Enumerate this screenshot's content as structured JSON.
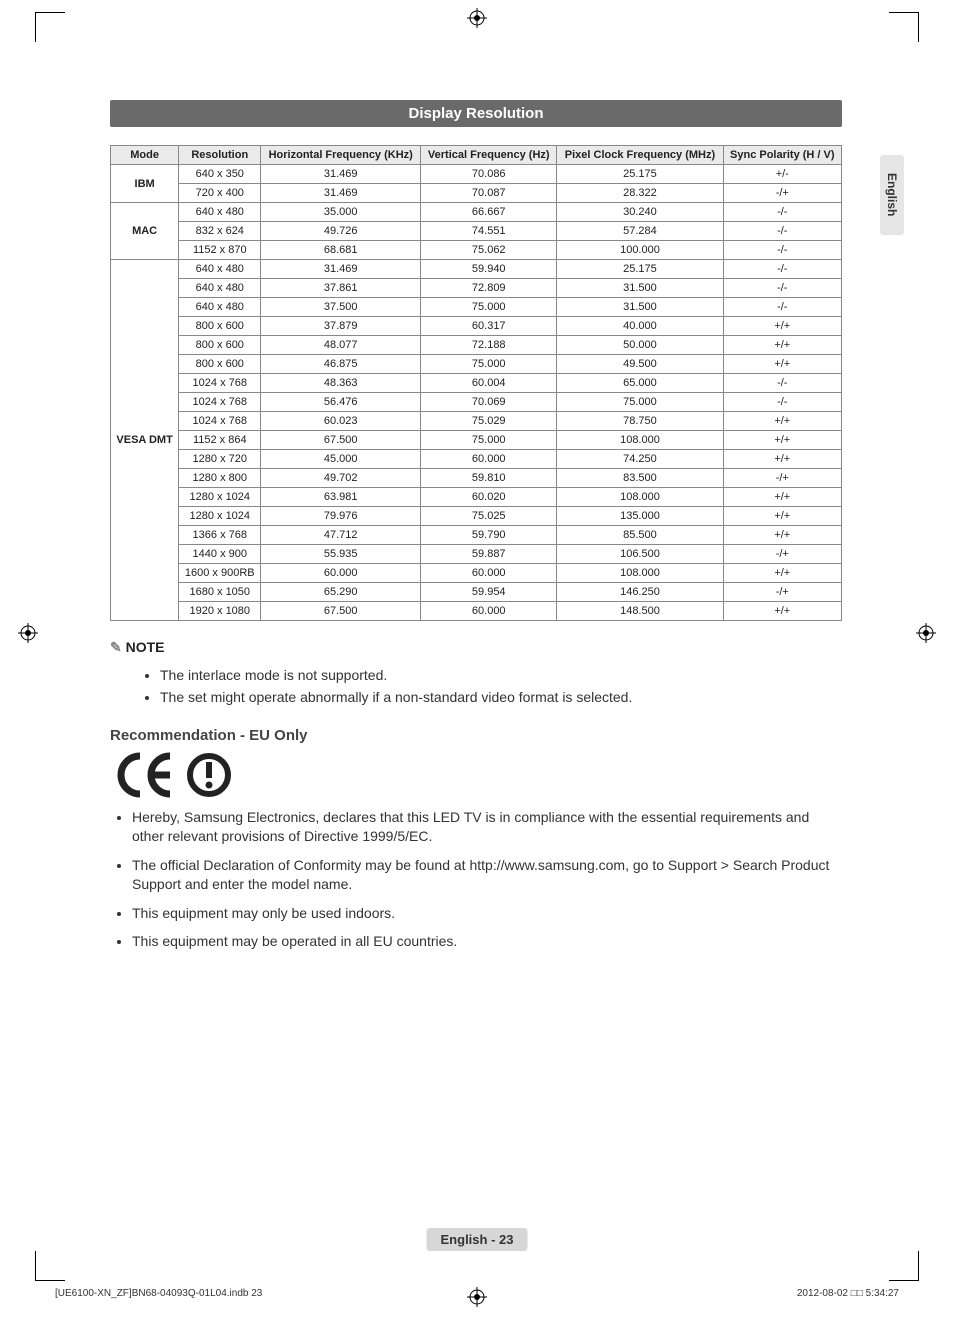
{
  "title": "Display Resolution",
  "side_tab": "English",
  "table": {
    "headers": [
      "Mode",
      "Resolution",
      "Horizontal Frequency (KHz)",
      "Vertical Frequency (Hz)",
      "Pixel Clock Frequency (MHz)",
      "Sync Polarity (H / V)"
    ],
    "groups": [
      {
        "mode": "IBM",
        "rows": [
          [
            "640 x 350",
            "31.469",
            "70.086",
            "25.175",
            "+/-"
          ],
          [
            "720 x 400",
            "31.469",
            "70.087",
            "28.322",
            "-/+"
          ]
        ]
      },
      {
        "mode": "MAC",
        "rows": [
          [
            "640 x 480",
            "35.000",
            "66.667",
            "30.240",
            "-/-"
          ],
          [
            "832 x 624",
            "49.726",
            "74.551",
            "57.284",
            "-/-"
          ],
          [
            "1152 x 870",
            "68.681",
            "75.062",
            "100.000",
            "-/-"
          ]
        ]
      },
      {
        "mode": "VESA DMT",
        "rows": [
          [
            "640 x 480",
            "31.469",
            "59.940",
            "25.175",
            "-/-"
          ],
          [
            "640 x 480",
            "37.861",
            "72.809",
            "31.500",
            "-/-"
          ],
          [
            "640 x 480",
            "37.500",
            "75.000",
            "31.500",
            "-/-"
          ],
          [
            "800 x 600",
            "37.879",
            "60.317",
            "40.000",
            "+/+"
          ],
          [
            "800 x 600",
            "48.077",
            "72.188",
            "50.000",
            "+/+"
          ],
          [
            "800 x 600",
            "46.875",
            "75.000",
            "49.500",
            "+/+"
          ],
          [
            "1024 x 768",
            "48.363",
            "60.004",
            "65.000",
            "-/-"
          ],
          [
            "1024 x 768",
            "56.476",
            "70.069",
            "75.000",
            "-/-"
          ],
          [
            "1024 x 768",
            "60.023",
            "75.029",
            "78.750",
            "+/+"
          ],
          [
            "1152 x 864",
            "67.500",
            "75.000",
            "108.000",
            "+/+"
          ],
          [
            "1280 x 720",
            "45.000",
            "60.000",
            "74.250",
            "+/+"
          ],
          [
            "1280 x 800",
            "49.702",
            "59.810",
            "83.500",
            "-/+"
          ],
          [
            "1280 x 1024",
            "63.981",
            "60.020",
            "108.000",
            "+/+"
          ],
          [
            "1280 x 1024",
            "79.976",
            "75.025",
            "135.000",
            "+/+"
          ],
          [
            "1366 x 768",
            "47.712",
            "59.790",
            "85.500",
            "+/+"
          ],
          [
            "1440 x 900",
            "55.935",
            "59.887",
            "106.500",
            "-/+"
          ],
          [
            "1600 x 900RB",
            "60.000",
            "60.000",
            "108.000",
            "+/+"
          ],
          [
            "1680 x 1050",
            "65.290",
            "59.954",
            "146.250",
            "-/+"
          ],
          [
            "1920 x 1080",
            "67.500",
            "60.000",
            "148.500",
            "+/+"
          ]
        ]
      }
    ]
  },
  "note_label": "NOTE",
  "notes": [
    "The interlace mode is not supported.",
    "The set might operate abnormally if a non-standard video format is selected."
  ],
  "rec_heading": "Recommendation - EU Only",
  "recs": [
    "Hereby, Samsung Electronics, declares that this LED TV is in compliance with the essential requirements and other relevant provisions of Directive 1999/5/EC.",
    "The official Declaration of Conformity may be found at http://www.samsung.com, go to Support > Search Product Support and enter the model name.",
    "This equipment may only be used indoors.",
    "This equipment may be operated in all EU countries."
  ],
  "footer_page": "English - 23",
  "footer_left": "[UE6100-XN_ZF]BN68-04093Q-01L04.indb   23",
  "footer_right": "2012-08-02   □□ 5:34:27"
}
